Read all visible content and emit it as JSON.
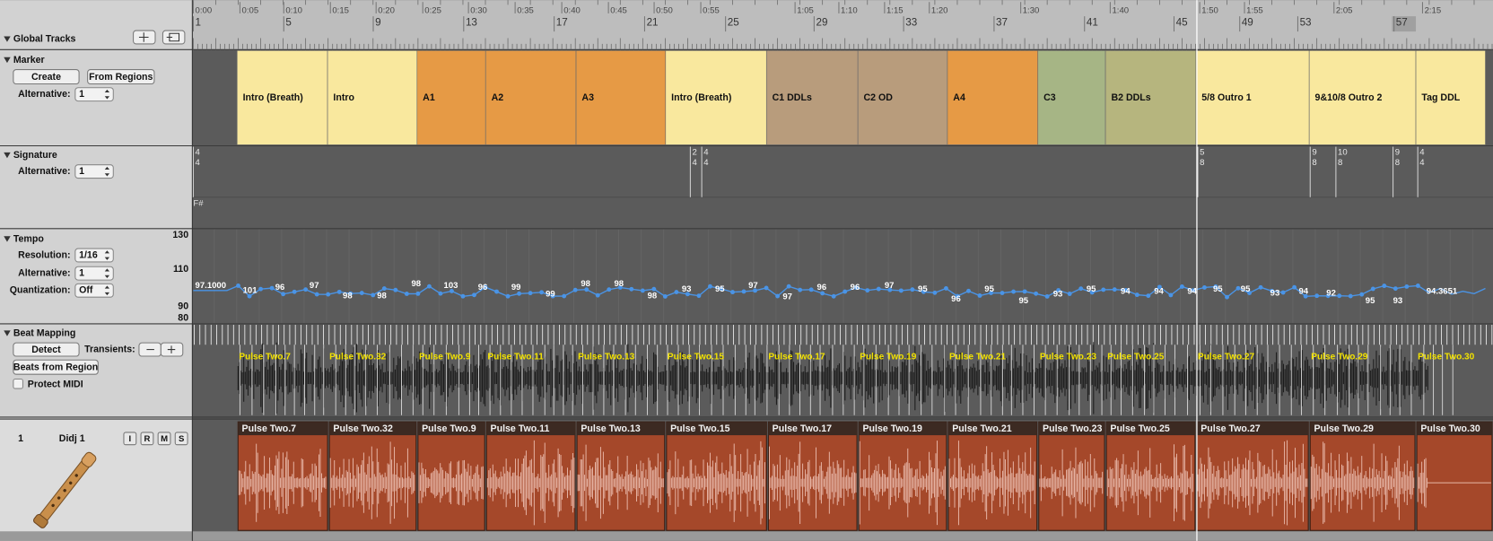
{
  "ruler": {
    "time_labels": [
      "0:00",
      "0:05",
      "0:10",
      "0:15",
      "0:20",
      "0:25",
      "0:30",
      "0:35",
      "0:40",
      "0:45",
      "0:50",
      "0:55",
      "1:05",
      "1:10",
      "1:15",
      "1:20",
      "1:30",
      "1:40",
      "1:50",
      "1:55",
      "2:05",
      "2:15"
    ],
    "bar_labels": [
      "1",
      "5",
      "9",
      "13",
      "17",
      "21",
      "25",
      "29",
      "33",
      "37",
      "41",
      "45",
      "49",
      "53",
      "57"
    ]
  },
  "global_tracks": {
    "title": "Global Tracks"
  },
  "marker": {
    "title": "Marker",
    "create": "Create",
    "from_regions": "From Regions",
    "alternative_label": "Alternative:",
    "alternative_value": "1",
    "markers": [
      {
        "label": "Intro (Breath)",
        "color": "#f9e89e"
      },
      {
        "label": "Intro",
        "color": "#f9e89e"
      },
      {
        "label": "A1",
        "color": "#e69a45"
      },
      {
        "label": "A2",
        "color": "#e69a45"
      },
      {
        "label": "A3",
        "color": "#e69a45"
      },
      {
        "label": "Intro (Breath)",
        "color": "#f9e89e"
      },
      {
        "label": "C1 DDLs",
        "color": "#b89c7c"
      },
      {
        "label": "C2 OD",
        "color": "#b89c7c"
      },
      {
        "label": "A4",
        "color": "#e69a45"
      },
      {
        "label": "C3",
        "color": "#a6b585"
      },
      {
        "label": "B2 DDLs",
        "color": "#b6b57e"
      },
      {
        "label": "5/8 Outro 1",
        "color": "#f9e89e"
      },
      {
        "label": "9&10/8 Outro 2",
        "color": "#f9e89e"
      },
      {
        "label": "Tag DDL",
        "color": "#f9e89e"
      }
    ]
  },
  "signature": {
    "title": "Signature",
    "alternative_label": "Alternative:",
    "alternative_value": "1",
    "signatures": [
      {
        "numerator": "4",
        "denominator": "4"
      },
      {
        "numerator": "2",
        "denominator": "4"
      },
      {
        "numerator": "4",
        "denominator": "4"
      },
      {
        "numerator": "5",
        "denominator": "8"
      },
      {
        "numerator": "9",
        "denominator": "8"
      },
      {
        "numerator": "10",
        "denominator": "8"
      },
      {
        "numerator": "9",
        "denominator": "8"
      },
      {
        "numerator": "4",
        "denominator": "4"
      }
    ],
    "key": "F#"
  },
  "tempo": {
    "title": "Tempo",
    "resolution_label": "Resolution:",
    "resolution_value": "1/16",
    "alternative_label": "Alternative:",
    "alternative_value": "1",
    "quantization_label": "Quantization:",
    "quantization_value": "Off",
    "scale_labels": [
      "130",
      "110",
      "90",
      "80"
    ],
    "point_labels": [
      "97.1000",
      "101",
      "96",
      "97",
      "98",
      "98",
      "98",
      "103",
      "96",
      "99",
      "99",
      "98",
      "98",
      "98",
      "93",
      "95",
      "97",
      "97",
      "96",
      "96",
      "97",
      "95",
      "96",
      "95",
      "95",
      "93",
      "95",
      "94",
      "94",
      "94",
      "95",
      "95",
      "93",
      "94",
      "92",
      "95",
      "93",
      "94.3651"
    ]
  },
  "beat_mapping": {
    "title": "Beat Mapping",
    "detect": "Detect",
    "transients_label": "Transients:",
    "beats_from_region": "Beats from Region",
    "protect_midi": "Protect MIDI",
    "region_labels": [
      "Pulse Two.7",
      "Pulse Two.32",
      "Pulse Two.9",
      "Pulse Two.11",
      "Pulse Two.13",
      "Pulse Two.15",
      "Pulse Two.17",
      "Pulse Two.19",
      "Pulse Two.21",
      "Pulse Two.23",
      "Pulse Two.25",
      "Pulse Two.27",
      "Pulse Two.29",
      "Pulse Two.30"
    ]
  },
  "track": {
    "number": "1",
    "name": "Didj 1",
    "buttons": [
      "I",
      "R",
      "M",
      "S"
    ],
    "regions": [
      "Pulse Two.7",
      "Pulse Two.32",
      "Pulse Two.9",
      "Pulse Two.11",
      "Pulse Two.13",
      "Pulse Two.15",
      "Pulse Two.17",
      "Pulse Two.19",
      "Pulse Two.21",
      "Pulse Two.23",
      "Pulse Two.25",
      "Pulse Two.27",
      "Pulse Two.29",
      "Pulse Two.30"
    ]
  }
}
